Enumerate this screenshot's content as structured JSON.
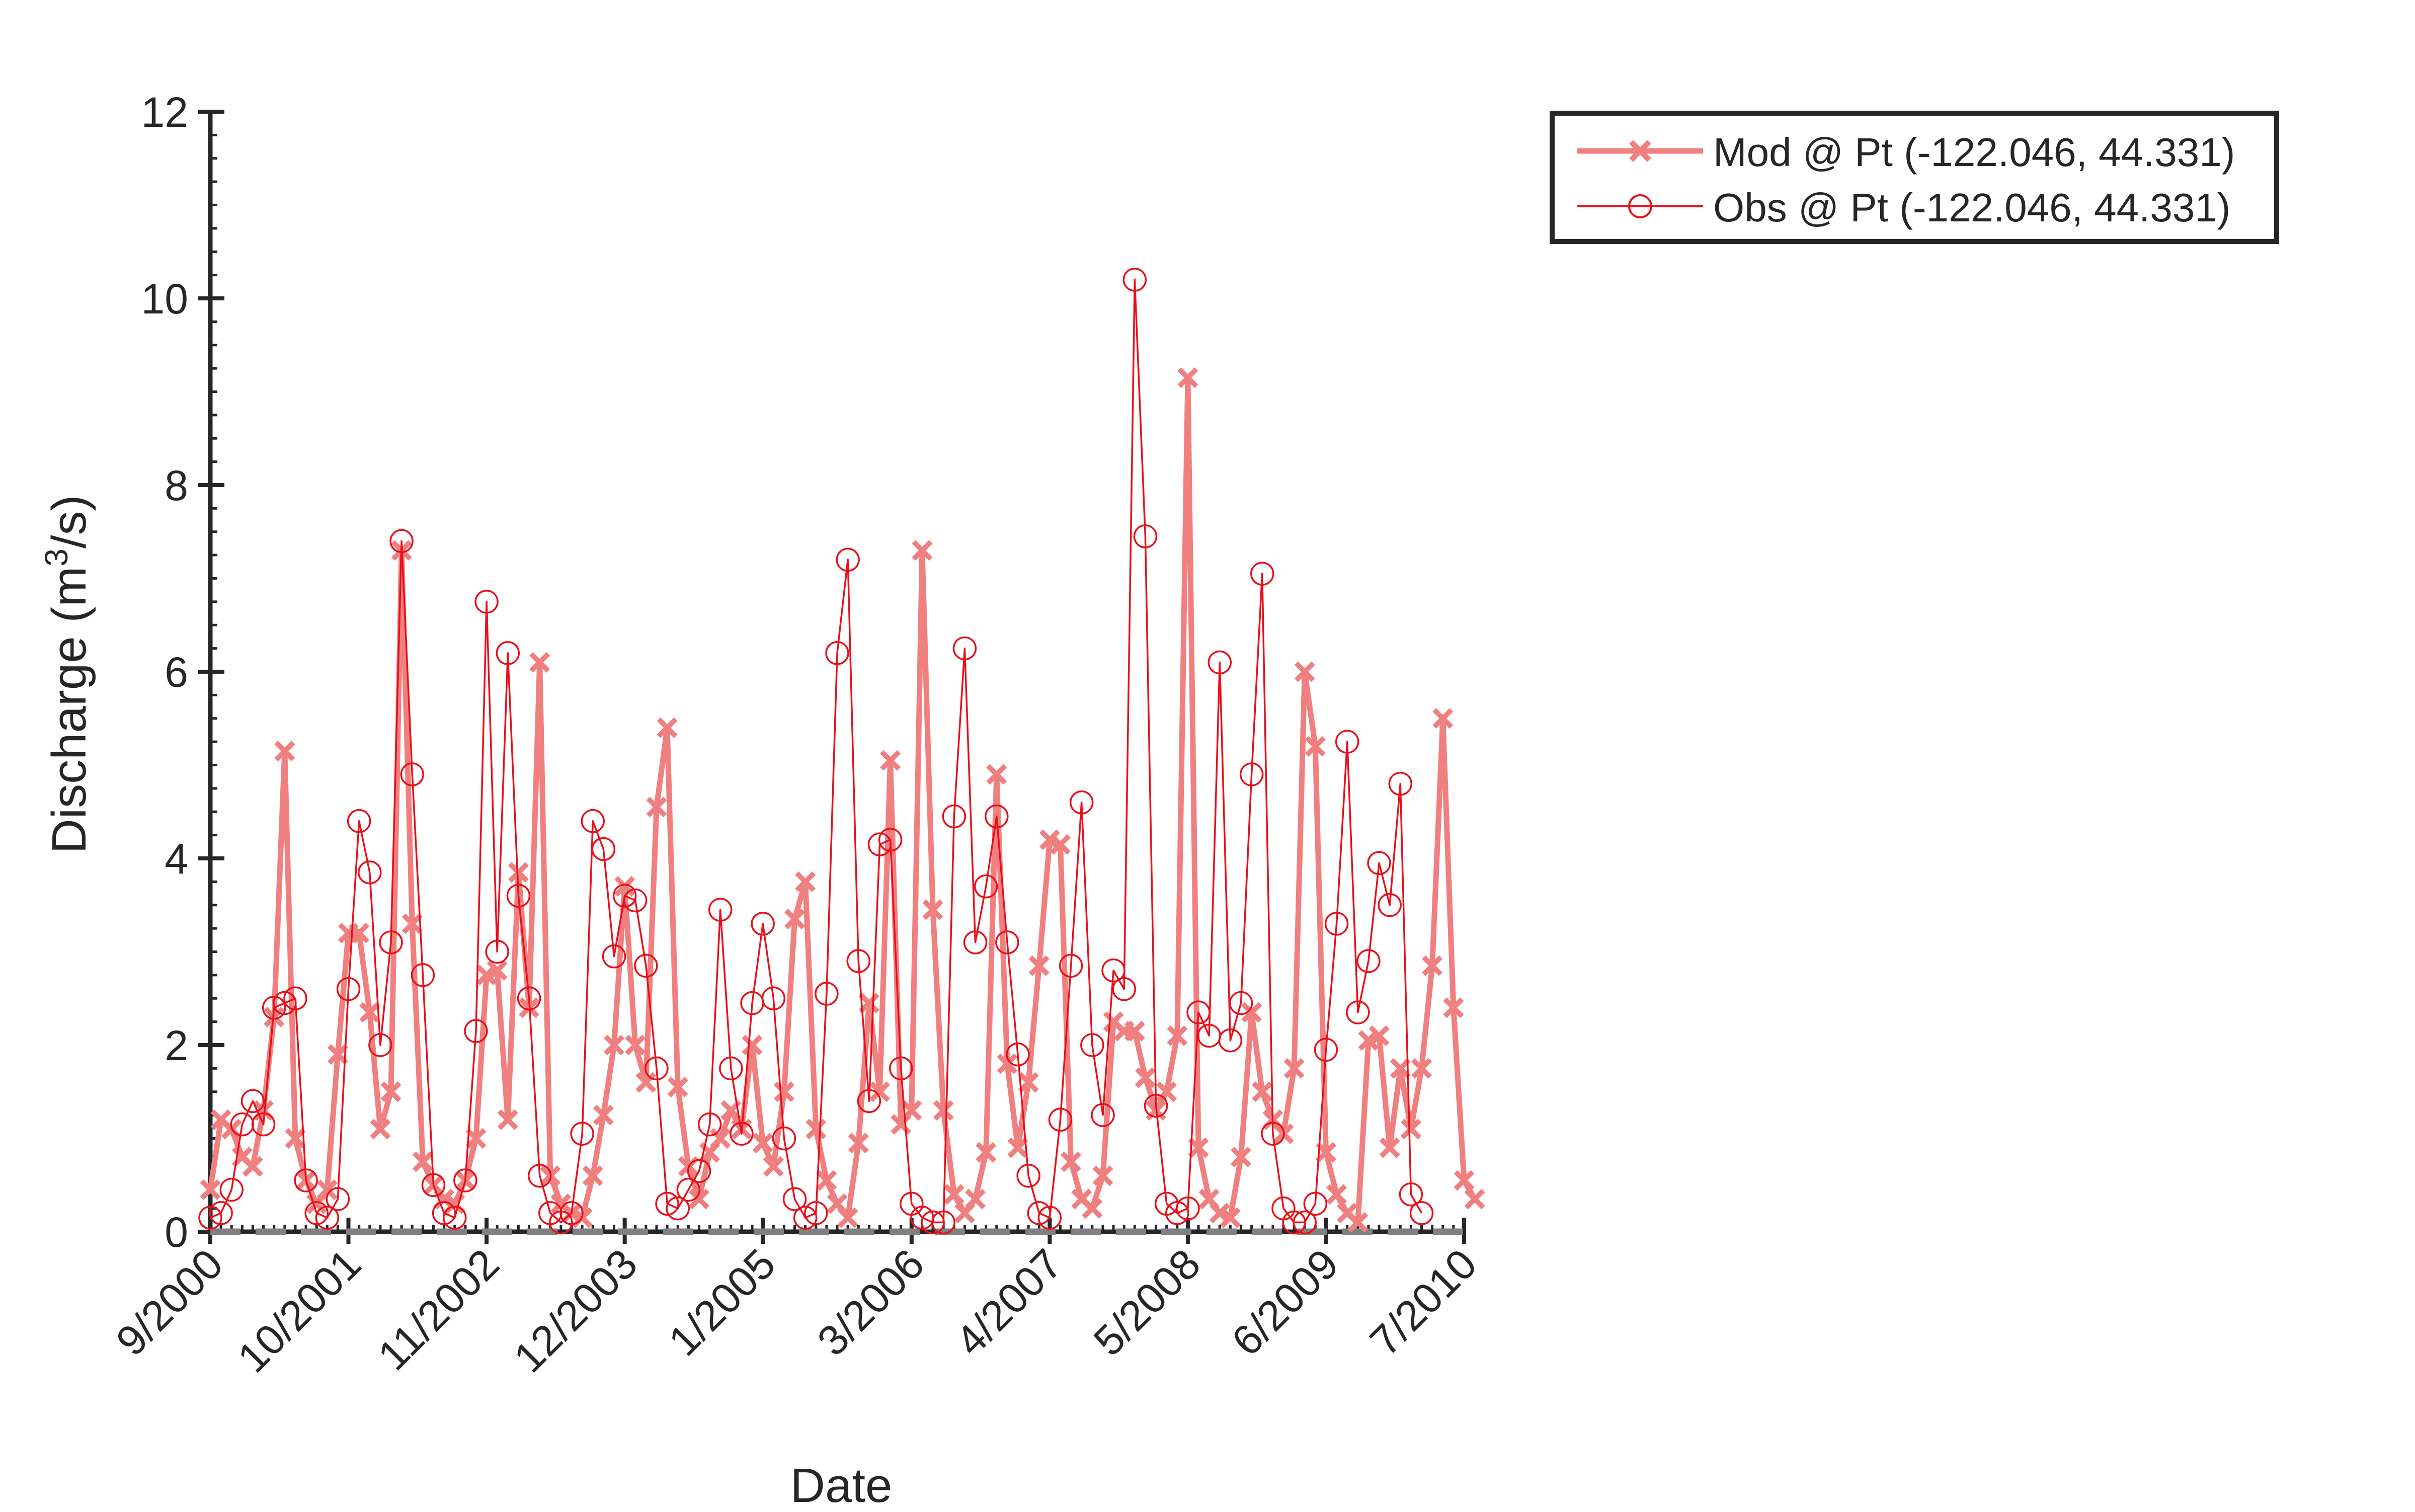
{
  "chart_data": {
    "type": "line",
    "xlabel": "Date",
    "ylabel": "Discharge (m",
    "ylabel_sup": "3",
    "ylabel_end": "/s)",
    "ylim": [
      0,
      12
    ],
    "yticks": [
      0,
      2,
      4,
      6,
      8,
      10,
      12
    ],
    "x_domain": [
      0,
      118
    ],
    "xtick_positions": [
      0,
      13,
      26,
      39,
      52,
      66,
      79,
      92,
      105,
      118
    ],
    "xtick_labels": [
      "9/2000",
      "10/2001",
      "11/2002",
      "12/2003",
      "1/2005",
      "3/2006",
      "4/2007",
      "5/2008",
      "6/2009",
      "7/2010"
    ],
    "grid": false,
    "legend_position": "top-right, outside plot area",
    "series": [
      {
        "name": "Mod @ Pt (-122.046, 44.331)",
        "marker": "x",
        "color": "#f08080",
        "values": [
          0.45,
          1.2,
          1.1,
          0.8,
          0.7,
          1.3,
          2.3,
          5.15,
          1.0,
          0.55,
          0.3,
          0.45,
          1.9,
          3.2,
          3.2,
          2.35,
          1.1,
          1.5,
          7.3,
          3.3,
          0.75,
          0.5,
          0.35,
          0.3,
          0.55,
          1.0,
          2.75,
          2.8,
          1.2,
          3.85,
          2.4,
          6.1,
          0.6,
          0.3,
          0.2,
          0.15,
          0.6,
          1.25,
          2.0,
          3.7,
          2.0,
          1.6,
          4.55,
          5.4,
          1.55,
          0.7,
          0.35,
          0.85,
          1.0,
          1.3,
          1.1,
          2.0,
          0.95,
          0.7,
          1.5,
          3.35,
          3.75,
          1.1,
          0.55,
          0.3,
          0.15,
          0.95,
          2.45,
          1.5,
          5.05,
          1.15,
          1.3,
          7.3,
          3.45,
          1.3,
          0.4,
          0.2,
          0.35,
          0.85,
          4.9,
          1.8,
          0.9,
          1.6,
          2.85,
          4.2,
          4.15,
          0.75,
          0.35,
          0.25,
          0.6,
          2.25,
          2.15,
          2.15,
          1.65,
          1.3,
          1.5,
          2.1,
          9.15,
          0.9,
          0.35,
          0.2,
          0.15,
          0.8,
          2.35,
          1.5,
          1.2,
          1.05,
          1.75,
          6.0,
          5.2,
          0.85,
          0.4,
          0.2,
          0.1,
          2.05,
          2.1,
          0.9,
          1.75,
          1.1,
          1.75,
          2.85,
          5.5,
          2.4,
          0.55,
          0.35
        ]
      },
      {
        "name": "Obs @ Pt (-122.046, 44.331)",
        "marker": "o",
        "color": "#e8101a",
        "values": [
          0.15,
          0.2,
          0.45,
          1.15,
          1.4,
          1.15,
          2.4,
          2.45,
          2.5,
          0.55,
          0.2,
          0.15,
          0.35,
          2.6,
          4.4,
          3.85,
          2.0,
          3.1,
          7.4,
          4.9,
          2.75,
          0.5,
          0.2,
          0.15,
          0.55,
          2.15,
          6.75,
          3.0,
          6.2,
          3.6,
          2.5,
          0.6,
          0.2,
          0.1,
          0.2,
          1.05,
          4.4,
          4.1,
          2.95,
          3.6,
          3.55,
          2.85,
          1.75,
          0.3,
          0.25,
          0.45,
          0.65,
          1.15,
          3.45,
          1.75,
          1.05,
          2.45,
          3.3,
          2.5,
          1.0,
          0.35,
          0.15,
          0.2,
          2.55,
          6.2,
          7.2,
          2.9,
          1.4,
          4.15,
          4.2,
          1.75,
          0.3,
          0.15,
          0.1,
          0.1,
          4.45,
          6.25,
          3.1,
          3.7,
          4.45,
          3.1,
          1.9,
          0.6,
          0.2,
          0.15,
          1.2,
          2.85,
          4.6,
          2.0,
          1.25,
          2.8,
          2.6,
          10.2,
          7.45,
          1.35,
          0.3,
          0.2,
          0.25,
          2.35,
          2.1,
          6.1,
          2.05,
          2.45,
          4.9,
          7.05,
          1.05,
          0.25,
          0.1,
          0.1,
          0.3,
          1.95,
          3.3,
          5.25,
          2.35,
          2.9,
          3.95,
          3.5,
          4.8,
          0.4,
          0.2
        ]
      }
    ],
    "baseline": {
      "value": 0,
      "color": "#808080",
      "style": "dashed"
    }
  }
}
